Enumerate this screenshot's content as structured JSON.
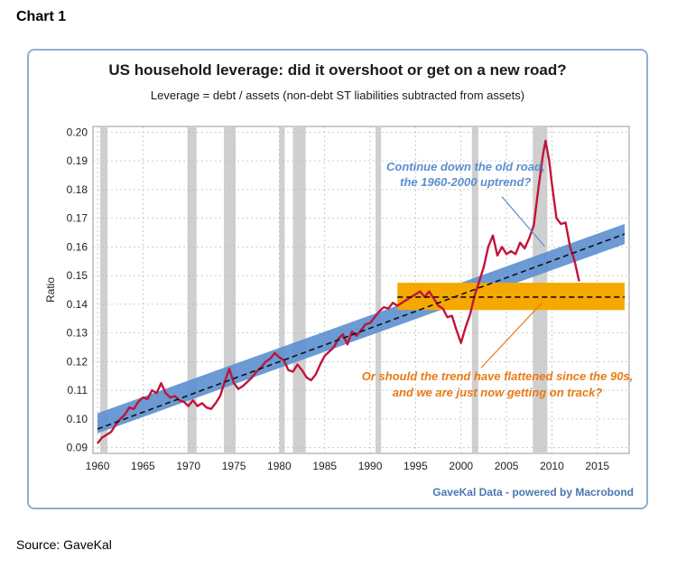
{
  "page": {
    "heading": "Chart 1",
    "source": "Source: GaveKal"
  },
  "chart_data": {
    "type": "line",
    "title": "US household leverage: did it overshoot or get on a new road?",
    "subtitle": "Leverage = debt / assets (non-debt ST liabilities subtracted from assets)",
    "xlabel": "",
    "ylabel": "Ratio",
    "xlim": [
      1959.5,
      2018.5
    ],
    "ylim": [
      0.088,
      0.202
    ],
    "x_ticks": [
      1960,
      1965,
      1970,
      1975,
      1980,
      1985,
      1990,
      1995,
      2000,
      2005,
      2010,
      2015
    ],
    "y_ticks": [
      "0.09",
      "0.10",
      "0.11",
      "0.12",
      "0.13",
      "0.14",
      "0.15",
      "0.16",
      "0.17",
      "0.18",
      "0.19",
      "0.20"
    ],
    "grid": true,
    "recessions": [
      [
        1960.3,
        1961.1
      ],
      [
        1969.9,
        1970.9
      ],
      [
        1973.9,
        1975.2
      ],
      [
        1980.0,
        1980.6
      ],
      [
        1981.5,
        1982.9
      ],
      [
        1990.6,
        1991.2
      ],
      [
        2001.2,
        2001.9
      ],
      [
        2007.9,
        2009.5
      ]
    ],
    "series": [
      {
        "points": [
          [
            1960.0,
            0.0915
          ],
          [
            1960.5,
            0.0935
          ],
          [
            1961.0,
            0.0945
          ],
          [
            1961.5,
            0.0955
          ],
          [
            1962.0,
            0.098
          ],
          [
            1962.5,
            0.1
          ],
          [
            1963.0,
            0.1015
          ],
          [
            1963.5,
            0.104
          ],
          [
            1964.0,
            0.1035
          ],
          [
            1964.5,
            0.106
          ],
          [
            1965.0,
            0.1075
          ],
          [
            1965.5,
            0.107
          ],
          [
            1966.0,
            0.11
          ],
          [
            1966.5,
            0.109
          ],
          [
            1967.0,
            0.1125
          ],
          [
            1967.5,
            0.109
          ],
          [
            1968.0,
            0.1075
          ],
          [
            1968.5,
            0.108
          ],
          [
            1969.0,
            0.1065
          ],
          [
            1969.5,
            0.106
          ],
          [
            1970.0,
            0.1045
          ],
          [
            1970.5,
            0.1065
          ],
          [
            1971.0,
            0.1045
          ],
          [
            1971.5,
            0.1055
          ],
          [
            1972.0,
            0.104
          ],
          [
            1972.5,
            0.1035
          ],
          [
            1973.0,
            0.1055
          ],
          [
            1973.5,
            0.108
          ],
          [
            1974.0,
            0.113
          ],
          [
            1974.5,
            0.1175
          ],
          [
            1975.0,
            0.1125
          ],
          [
            1975.5,
            0.1105
          ],
          [
            1976.0,
            0.1115
          ],
          [
            1976.5,
            0.113
          ],
          [
            1977.0,
            0.1145
          ],
          [
            1977.5,
            0.1165
          ],
          [
            1978.0,
            0.118
          ],
          [
            1978.5,
            0.12
          ],
          [
            1979.0,
            0.121
          ],
          [
            1979.5,
            0.123
          ],
          [
            1980.0,
            0.1215
          ],
          [
            1980.5,
            0.1205
          ],
          [
            1981.0,
            0.117
          ],
          [
            1981.5,
            0.1165
          ],
          [
            1982.0,
            0.119
          ],
          [
            1982.5,
            0.117
          ],
          [
            1983.0,
            0.1145
          ],
          [
            1983.5,
            0.1135
          ],
          [
            1984.0,
            0.1155
          ],
          [
            1984.5,
            0.119
          ],
          [
            1985.0,
            0.122
          ],
          [
            1985.5,
            0.1235
          ],
          [
            1986.0,
            0.125
          ],
          [
            1986.5,
            0.128
          ],
          [
            1987.0,
            0.1295
          ],
          [
            1987.5,
            0.126
          ],
          [
            1988.0,
            0.1305
          ],
          [
            1988.5,
            0.129
          ],
          [
            1989.0,
            0.131
          ],
          [
            1989.5,
            0.133
          ],
          [
            1990.0,
            0.1335
          ],
          [
            1990.5,
            0.1355
          ],
          [
            1991.0,
            0.1375
          ],
          [
            1991.5,
            0.139
          ],
          [
            1992.0,
            0.1385
          ],
          [
            1992.5,
            0.1405
          ],
          [
            1993.0,
            0.1395
          ],
          [
            1993.5,
            0.1405
          ],
          [
            1994.0,
            0.1415
          ],
          [
            1994.5,
            0.1425
          ],
          [
            1995.0,
            0.1435
          ],
          [
            1995.5,
            0.1445
          ],
          [
            1996.0,
            0.1425
          ],
          [
            1996.5,
            0.1445
          ],
          [
            1997.0,
            0.142
          ],
          [
            1997.5,
            0.1395
          ],
          [
            1998.0,
            0.1385
          ],
          [
            1998.5,
            0.1355
          ],
          [
            1999.0,
            0.136
          ],
          [
            1999.5,
            0.131
          ],
          [
            2000.0,
            0.1265
          ],
          [
            2000.5,
            0.132
          ],
          [
            2001.0,
            0.1365
          ],
          [
            2001.5,
            0.143
          ],
          [
            2002.0,
            0.148
          ],
          [
            2002.5,
            0.153
          ],
          [
            2003.0,
            0.16
          ],
          [
            2003.5,
            0.164
          ],
          [
            2004.0,
            0.157
          ],
          [
            2004.5,
            0.16
          ],
          [
            2005.0,
            0.1575
          ],
          [
            2005.5,
            0.1585
          ],
          [
            2006.0,
            0.1575
          ],
          [
            2006.5,
            0.1615
          ],
          [
            2007.0,
            0.1595
          ],
          [
            2007.5,
            0.163
          ],
          [
            2008.0,
            0.1675
          ],
          [
            2008.5,
            0.18
          ],
          [
            2009.0,
            0.192
          ],
          [
            2009.3,
            0.197
          ],
          [
            2009.7,
            0.19
          ],
          [
            2010.0,
            0.182
          ],
          [
            2010.5,
            0.17
          ],
          [
            2011.0,
            0.168
          ],
          [
            2011.5,
            0.1685
          ],
          [
            2012.0,
            0.16
          ],
          [
            2012.5,
            0.155
          ],
          [
            2013.0,
            0.148
          ]
        ],
        "color": "#c1143b"
      }
    ],
    "trend_band": {
      "from": [
        1960,
        0.0985
      ],
      "to": [
        2018,
        0.1645
      ],
      "half_width": 0.0035,
      "color": "#5b8fcf"
    },
    "trend_line": {
      "from": [
        1960,
        0.0965
      ],
      "to": [
        2018,
        0.1645
      ],
      "style": "dashed"
    },
    "flat_band": {
      "x": [
        1993,
        2018
      ],
      "y": [
        0.138,
        0.1475
      ],
      "color": "#f5a800"
    },
    "flat_line": {
      "from": [
        1993,
        0.1425
      ],
      "to": [
        2018,
        0.1425
      ],
      "style": "dashed"
    },
    "annotations": [
      {
        "lines": [
          "Continue down the old road,",
          "the 1960-2000 uptrend?"
        ],
        "color": "#5b8fcf"
      },
      {
        "lines": [
          "Or should the trend have flattened since the 90s,",
          "and we are just now getting on track?"
        ],
        "color": "#e87a14"
      }
    ],
    "credit": "GaveKal Data - powered by Macrobond"
  }
}
